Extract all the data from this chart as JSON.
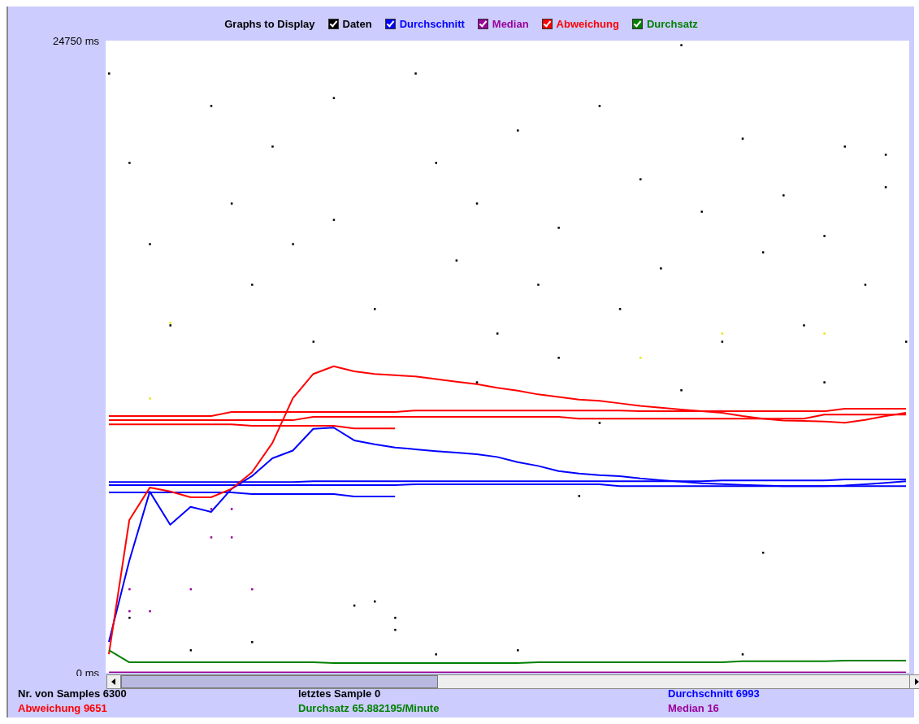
{
  "chart_data": {
    "type": "line",
    "legend_title": "Graphs to Display",
    "legend": "top",
    "grid": false,
    "line_style": "solid",
    "tick_labels": "y",
    "categories": [
      null,
      null,
      null,
      null,
      null,
      null,
      null,
      null,
      null,
      null,
      null,
      null,
      null,
      null,
      null,
      null,
      null,
      null,
      null,
      null,
      null,
      null,
      null,
      null,
      null,
      null,
      null,
      null,
      null,
      null,
      null,
      null,
      null,
      null,
      null,
      null,
      null,
      null,
      null,
      null
    ],
    "ylim": [
      0,
      24750
    ],
    "yticks": [
      {
        "value": 24750,
        "label": "24750 ms"
      },
      {
        "value": 0,
        "label": "0 ms"
      }
    ],
    "series": [
      {
        "name": "Daten",
        "type": "scatter",
        "color": "#000000",
        "values": [
          23470,
          19970,
          16790,
          13610,
          890,
          22200,
          18380,
          15200,
          20610,
          16790,
          12970,
          22510,
          2640,
          14250,
          1690,
          23470,
          19970,
          16150,
          18380,
          13290,
          21240,
          15200,
          17430,
          6930,
          22200,
          14250,
          19330,
          15840,
          24580,
          18060,
          12970,
          20920,
          16470,
          18700,
          13610,
          17110,
          20610,
          15200,
          19020,
          12970
        ]
      },
      {
        "type": "scatter",
        "color": "#000000",
        "values": [
          null,
          2160,
          null,
          null,
          null,
          null,
          null,
          1210,
          null,
          null,
          null,
          17740,
          null,
          2800,
          2160,
          null,
          730,
          null,
          11380,
          null,
          890,
          null,
          12340,
          null,
          9790,
          null,
          null,
          null,
          11070,
          null,
          null,
          730,
          4710,
          null,
          null,
          11380,
          null,
          null,
          20290,
          null
        ]
      },
      {
        "name": "Durchschnitt",
        "color": "#0000ff",
        "values": [
          1210,
          4390,
          7090,
          5800,
          6500,
          6300,
          7200,
          7700,
          8400,
          8700,
          9550,
          9600,
          9100,
          8950,
          8820,
          8750,
          8680,
          8620,
          8560,
          8450,
          8250,
          8100,
          7900,
          7800,
          7740,
          7700,
          7610,
          7540,
          7480,
          7420,
          7390,
          7360,
          7330,
          7310,
          7310,
          7310,
          7330,
          7380,
          7440,
          7500
        ]
      },
      {
        "color": "#0000ff",
        "values": [
          7470,
          7470,
          7470,
          7470,
          7470,
          7470,
          7470,
          7470,
          7470,
          7470,
          7500,
          7500,
          7500,
          7500,
          7500,
          7500,
          7500,
          7500,
          7500,
          7500,
          7500,
          7500,
          7500,
          7500,
          7500,
          7500,
          7500,
          7500,
          7500,
          7500,
          7530,
          7530,
          7530,
          7530,
          7530,
          7530,
          7570,
          7570,
          7570,
          7570
        ]
      },
      {
        "color": "#0000ff",
        "values": [
          7350,
          7350,
          7350,
          7350,
          7350,
          7350,
          7350,
          7350,
          7350,
          7350,
          7350,
          7350,
          7350,
          7350,
          7350,
          7380,
          7380,
          7380,
          7380,
          7380,
          7380,
          7380,
          7380,
          7380,
          7380,
          7310,
          7310,
          7310,
          7310,
          7310,
          7310,
          7310,
          7310,
          7310,
          7310,
          7310,
          7310,
          7310,
          7310,
          7310
        ]
      },
      {
        "color": "#0000ff",
        "values": [
          7060,
          7060,
          7060,
          7060,
          7060,
          7060,
          7060,
          7000,
          7000,
          7000,
          7000,
          7000,
          6900,
          6900,
          6900,
          null,
          null,
          null,
          null,
          null,
          null,
          null,
          null,
          null,
          null,
          null,
          null,
          null,
          null,
          null,
          null,
          null,
          null,
          null,
          null,
          null,
          null,
          null,
          null,
          null
        ]
      },
      {
        "name": "Median",
        "color": "#990099",
        "values": [
          16,
          16,
          16,
          16,
          16,
          16,
          16,
          16,
          16,
          16,
          16,
          16,
          16,
          16,
          16,
          16,
          16,
          16,
          16,
          16,
          16,
          16,
          16,
          16,
          16,
          16,
          16,
          16,
          16,
          16,
          16,
          16,
          16,
          16,
          16,
          16,
          16,
          16,
          16,
          16
        ]
      },
      {
        "type": "scatter",
        "color": "#990099",
        "values": [
          null,
          3280,
          null,
          null,
          3280,
          6420,
          6420,
          3280,
          null,
          null,
          null,
          null,
          null,
          null,
          null,
          null,
          null,
          null,
          null,
          null,
          null,
          null,
          null,
          null,
          null,
          null,
          null,
          null,
          null,
          null,
          null,
          null,
          null,
          null,
          null,
          null,
          null,
          null,
          null,
          null
        ]
      },
      {
        "type": "scatter",
        "color": "#990099",
        "values": [
          null,
          2420,
          2420,
          null,
          null,
          5310,
          5310,
          null,
          null,
          null,
          null,
          null,
          null,
          null,
          null,
          null,
          null,
          null,
          null,
          null,
          null,
          null,
          null,
          null,
          null,
          null,
          null,
          null,
          null,
          null,
          null,
          null,
          null,
          null,
          null,
          null,
          null,
          null,
          null,
          null
        ]
      },
      {
        "name": "Abweichung",
        "color": "#ff0000",
        "values": [
          730,
          5980,
          7250,
          7100,
          6870,
          6870,
          7200,
          7850,
          9000,
          10750,
          11700,
          12000,
          11800,
          11700,
          11650,
          11600,
          11500,
          11400,
          11300,
          11160,
          11050,
          10900,
          10800,
          10700,
          10650,
          10550,
          10450,
          10380,
          10310,
          10240,
          10180,
          10050,
          9950,
          9880,
          9860,
          9840,
          9790,
          9900,
          10050,
          10180
        ]
      },
      {
        "color": "#ff0000",
        "values": [
          10050,
          10050,
          10050,
          10050,
          10050,
          10050,
          10210,
          10210,
          10210,
          10210,
          10210,
          10210,
          10210,
          10210,
          10210,
          10270,
          10270,
          10270,
          10270,
          10270,
          10270,
          10270,
          10270,
          10270,
          10270,
          10270,
          10240,
          10240,
          10240,
          10240,
          10240,
          10240,
          10240,
          10240,
          10240,
          10240,
          10340,
          10340,
          10340,
          10340
        ]
      },
      {
        "color": "#ff0000",
        "values": [
          9890,
          9890,
          9890,
          9890,
          9890,
          9890,
          9890,
          9890,
          9890,
          9890,
          10020,
          10020,
          10020,
          10020,
          10020,
          10020,
          10020,
          10020,
          10020,
          10020,
          10020,
          10020,
          10020,
          9950,
          9950,
          9950,
          9950,
          9950,
          9950,
          9950,
          9950,
          9950,
          9950,
          9950,
          9950,
          10110,
          10110,
          10110,
          10110,
          10110
        ]
      },
      {
        "color": "#ff0000",
        "values": [
          9730,
          9730,
          9730,
          9730,
          9730,
          9730,
          9730,
          9670,
          9670,
          9670,
          9670,
          9670,
          9570,
          9570,
          9570,
          null,
          null,
          null,
          null,
          null,
          null,
          null,
          null,
          null,
          null,
          null,
          null,
          null,
          null,
          null,
          null,
          null,
          null,
          null,
          null,
          null,
          null,
          null,
          null,
          null
        ]
      },
      {
        "name": "Durchsatz",
        "color": "#008000",
        "values": [
          890,
          410,
          410,
          410,
          410,
          410,
          410,
          410,
          410,
          410,
          410,
          380,
          380,
          380,
          380,
          380,
          380,
          380,
          380,
          380,
          380,
          410,
          410,
          410,
          410,
          410,
          410,
          410,
          410,
          410,
          410,
          450,
          450,
          450,
          450,
          450,
          480,
          480,
          480,
          480
        ]
      },
      {
        "type": "scatter",
        "color": "#e8e800",
        "values": [
          null,
          null,
          10750,
          13710,
          null,
          null,
          null,
          null,
          null,
          null,
          null,
          null,
          null,
          null,
          null,
          null,
          null,
          null,
          null,
          null,
          null,
          null,
          null,
          null,
          null,
          null,
          12340,
          null,
          null,
          null,
          13290,
          null,
          null,
          null,
          null,
          13290,
          null,
          null,
          null,
          null
        ]
      }
    ],
    "annotations": [
      "Nr. von Samples 6300",
      "letztes Sample 0",
      "Durchschnitt 6993",
      "Abweichung 9651",
      "Durchsatz 65.882195/Minute",
      "Median 16"
    ]
  }
}
